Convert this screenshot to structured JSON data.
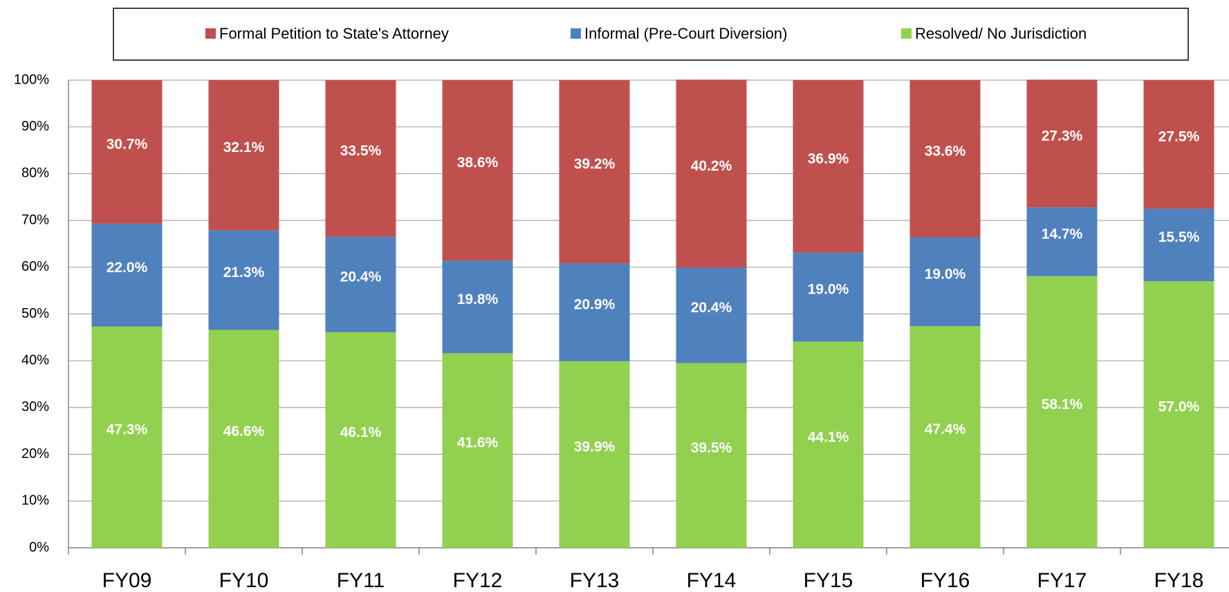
{
  "chart_data": {
    "type": "stacked_bar",
    "categories": [
      "FY09",
      "FY10",
      "FY11",
      "FY12",
      "FY13",
      "FY14",
      "FY15",
      "FY16",
      "FY17",
      "FY18"
    ],
    "series": [
      {
        "name": "Formal Petition to State's Attorney",
        "color": "#c0504d",
        "values": [
          30.7,
          32.1,
          33.5,
          38.6,
          39.2,
          40.2,
          36.9,
          33.6,
          27.3,
          27.5
        ],
        "value_labels": [
          "30.7%",
          "32.1%",
          "33.5%",
          "38.6%",
          "39.2%",
          "40.2%",
          "36.9%",
          "33.6%",
          "27.3%",
          "27.5%"
        ]
      },
      {
        "name": "Informal (Pre-Court Diversion)",
        "color": "#4f81bd",
        "values": [
          22.0,
          21.3,
          20.4,
          19.8,
          20.9,
          20.4,
          19.0,
          19.0,
          14.7,
          15.5
        ],
        "value_labels": [
          "22.0%",
          "21.3%",
          "20.4%",
          "19.8%",
          "20.9%",
          "20.4%",
          "19.0%",
          "19.0%",
          "14.7%",
          "15.5%"
        ]
      },
      {
        "name": "Resolved/ No Jurisdiction",
        "color": "#92d050",
        "values": [
          47.3,
          46.6,
          46.1,
          41.6,
          39.9,
          39.5,
          44.1,
          47.4,
          58.1,
          57.0
        ],
        "value_labels": [
          "47.3%",
          "46.6%",
          "46.1%",
          "41.6%",
          "39.9%",
          "39.5%",
          "44.1%",
          "47.4%",
          "58.1%",
          "57.0%"
        ]
      }
    ],
    "ylim": [
      0,
      100
    ],
    "yticks": [
      {
        "value": 0,
        "label": "0%"
      },
      {
        "value": 10,
        "label": "10%"
      },
      {
        "value": 20,
        "label": "20%"
      },
      {
        "value": 30,
        "label": "30%"
      },
      {
        "value": 40,
        "label": "40%"
      },
      {
        "value": 50,
        "label": "50%"
      },
      {
        "value": 60,
        "label": "60%"
      },
      {
        "value": 70,
        "label": "70%"
      },
      {
        "value": 80,
        "label": "80%"
      },
      {
        "value": 90,
        "label": "90%"
      },
      {
        "value": 100,
        "label": "100%"
      }
    ],
    "grid": true,
    "legend": "top"
  }
}
